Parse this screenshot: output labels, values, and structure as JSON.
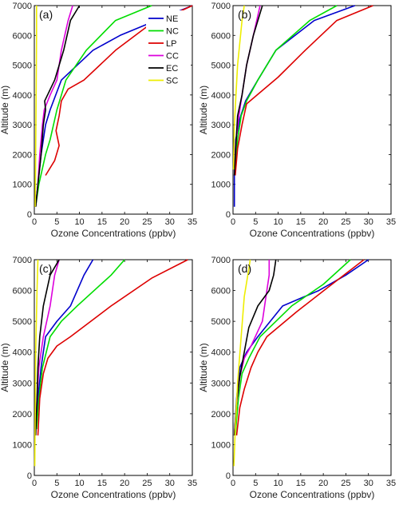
{
  "chart_data": [
    {
      "type": "line",
      "panel_label": "(a)",
      "xlabel": "Ozone Concentrations (ppbv)",
      "ylabel": "Altitude (m)",
      "xlim": [
        0,
        35
      ],
      "ylim": [
        0,
        7000
      ],
      "xticks": [
        0,
        5,
        10,
        15,
        20,
        25,
        30,
        35
      ],
      "yticks": [
        0,
        1000,
        2000,
        3000,
        4000,
        5000,
        6000,
        7000
      ],
      "legend": {
        "position": "top-right",
        "entries": [
          "NE",
          "NC",
          "LP",
          "CC",
          "EC",
          "SC"
        ]
      },
      "series": [
        {
          "name": "NE",
          "color": "#0000cc",
          "points": [
            [
              0.3,
              250
            ],
            [
              0.8,
              1000
            ],
            [
              1.5,
              2000
            ],
            [
              2.5,
              3000
            ],
            [
              3.5,
              3500
            ],
            [
              6.0,
              4500
            ],
            [
              13,
              5500
            ],
            [
              19,
              6000
            ],
            [
              27,
              6500
            ],
            [
              35,
              7000
            ]
          ]
        },
        {
          "name": "NC",
          "color": "#00dd00",
          "points": [
            [
              0.3,
              250
            ],
            [
              1.0,
              1000
            ],
            [
              2.5,
              2000
            ],
            [
              3.5,
              2500
            ],
            [
              5.0,
              3500
            ],
            [
              7.0,
              4500
            ],
            [
              11.5,
              5500
            ],
            [
              18,
              6500
            ],
            [
              26,
              7000
            ]
          ]
        },
        {
          "name": "LP",
          "color": "#dd0000",
          "points": [
            [
              2.5,
              1300
            ],
            [
              4.5,
              1800
            ],
            [
              5.5,
              2300
            ],
            [
              4.8,
              2800
            ],
            [
              5.5,
              3300
            ],
            [
              6.0,
              3800
            ],
            [
              7.5,
              4200
            ],
            [
              11,
              4500
            ],
            [
              18,
              5500
            ],
            [
              25,
              6300
            ],
            [
              35,
              7000
            ]
          ]
        },
        {
          "name": "CC",
          "color": "#dd00dd",
          "points": [
            [
              0.3,
              250
            ],
            [
              0.8,
              1000
            ],
            [
              1.2,
              2000
            ],
            [
              1.8,
              3000
            ],
            [
              2.2,
              3500
            ],
            [
              3.5,
              4000
            ],
            [
              5.0,
              4500
            ],
            [
              6.0,
              5500
            ],
            [
              7.5,
              6500
            ],
            [
              8.5,
              7000
            ]
          ]
        },
        {
          "name": "EC",
          "color": "#000000",
          "points": [
            [
              0.3,
              250
            ],
            [
              0.8,
              1000
            ],
            [
              1.5,
              2000
            ],
            [
              2.0,
              3000
            ],
            [
              2.5,
              3500
            ],
            [
              2.3,
              3800
            ],
            [
              4.5,
              4500
            ],
            [
              6.5,
              5500
            ],
            [
              8.0,
              6500
            ],
            [
              10,
              7000
            ]
          ]
        },
        {
          "name": "SC",
          "color": "#eeee00",
          "points": [
            [
              0.2,
              250
            ],
            [
              0.3,
              2000
            ],
            [
              0.4,
              4000
            ],
            [
              0.5,
              6000
            ],
            [
              0.5,
              7000
            ]
          ]
        }
      ]
    },
    {
      "type": "line",
      "panel_label": "(b)",
      "xlabel": "Ozone Concentrations (ppbv)",
      "ylabel": "Altitude (m)",
      "xlim": [
        0,
        35
      ],
      "ylim": [
        0,
        7000
      ],
      "xticks": [
        0,
        5,
        10,
        15,
        20,
        25,
        30,
        35
      ],
      "yticks": [
        0,
        1000,
        2000,
        3000,
        4000,
        5000,
        6000,
        7000
      ],
      "series": [
        {
          "name": "NE",
          "color": "#0000cc",
          "points": [
            [
              0.3,
              250
            ],
            [
              0.3,
              1300
            ],
            [
              0.6,
              2500
            ],
            [
              1.5,
              3200
            ],
            [
              2.8,
              3800
            ],
            [
              5.5,
              4500
            ],
            [
              9.5,
              5500
            ],
            [
              18,
              6500
            ],
            [
              27,
              7000
            ]
          ]
        },
        {
          "name": "NC",
          "color": "#00dd00",
          "points": [
            [
              0.5,
              1500
            ],
            [
              1.0,
              2500
            ],
            [
              1.8,
              3300
            ],
            [
              3.0,
              3800
            ],
            [
              5.5,
              4500
            ],
            [
              9.5,
              5500
            ],
            [
              17,
              6500
            ],
            [
              23,
              7000
            ]
          ]
        },
        {
          "name": "LP",
          "color": "#dd0000",
          "points": [
            [
              0.5,
              1300
            ],
            [
              1.0,
              2200
            ],
            [
              2.0,
              3000
            ],
            [
              3.0,
              3700
            ],
            [
              10,
              4600
            ],
            [
              16,
              5500
            ],
            [
              23,
              6500
            ],
            [
              31,
              7000
            ]
          ]
        },
        {
          "name": "CC",
          "color": "#dd00dd",
          "points": [
            [
              0.3,
              1300
            ],
            [
              0.6,
              2300
            ],
            [
              1.2,
              3200
            ],
            [
              2.0,
              4000
            ],
            [
              3.0,
              5000
            ],
            [
              4.5,
              6000
            ],
            [
              6.0,
              7000
            ]
          ]
        },
        {
          "name": "EC",
          "color": "#000000",
          "points": [
            [
              0.3,
              1300
            ],
            [
              0.6,
              2200
            ],
            [
              1.0,
              3300
            ],
            [
              2.0,
              4000
            ],
            [
              3.0,
              5000
            ],
            [
              4.5,
              6000
            ],
            [
              6.5,
              7000
            ]
          ]
        },
        {
          "name": "SC",
          "color": "#eeee00",
          "points": [
            [
              0.1,
              1500
            ],
            [
              0.3,
              3000
            ],
            [
              1.0,
              5000
            ],
            [
              2.0,
              6500
            ],
            [
              2.5,
              7000
            ]
          ]
        }
      ]
    },
    {
      "type": "line",
      "panel_label": "(c)",
      "xlabel": "Ozone Concentrations (ppbv)",
      "ylabel": "Altitude (m)",
      "xlim": [
        0,
        35
      ],
      "ylim": [
        0,
        7000
      ],
      "xticks": [
        0,
        5,
        10,
        15,
        20,
        25,
        30,
        35
      ],
      "yticks": [
        0,
        1000,
        2000,
        3000,
        4000,
        5000,
        6000,
        7000
      ],
      "series": [
        {
          "name": "NE",
          "color": "#0000cc",
          "points": [
            [
              0.3,
              1500
            ],
            [
              0.8,
              2500
            ],
            [
              1.5,
              3500
            ],
            [
              2.5,
              4500
            ],
            [
              5.0,
              5000
            ],
            [
              8.0,
              5500
            ],
            [
              11,
              6500
            ],
            [
              13,
              7000
            ]
          ]
        },
        {
          "name": "NC",
          "color": "#00dd00",
          "points": [
            [
              0.5,
              1500
            ],
            [
              1.0,
              2500
            ],
            [
              1.8,
              3500
            ],
            [
              3.5,
              4500
            ],
            [
              6.0,
              5000
            ],
            [
              9.5,
              5500
            ],
            [
              17,
              6500
            ],
            [
              20,
              7000
            ]
          ]
        },
        {
          "name": "LP",
          "color": "#dd0000",
          "points": [
            [
              0.8,
              1300
            ],
            [
              1.2,
              2500
            ],
            [
              2.0,
              3300
            ],
            [
              3.0,
              3800
            ],
            [
              5.0,
              4200
            ],
            [
              8.0,
              4500
            ],
            [
              17,
              5500
            ],
            [
              26,
              6400
            ],
            [
              34,
              7000
            ]
          ]
        },
        {
          "name": "CC",
          "color": "#dd00dd",
          "points": [
            [
              0.3,
              1300
            ],
            [
              0.6,
              2500
            ],
            [
              1.0,
              3500
            ],
            [
              2.0,
              4500
            ],
            [
              3.5,
              5500
            ],
            [
              4.5,
              6500
            ],
            [
              5.5,
              7000
            ]
          ]
        },
        {
          "name": "EC",
          "color": "#000000",
          "points": [
            [
              0.3,
              1300
            ],
            [
              0.6,
              2500
            ],
            [
              0.8,
              3500
            ],
            [
              1.2,
              4500
            ],
            [
              2.0,
              5500
            ],
            [
              3.5,
              6500
            ],
            [
              5.5,
              7000
            ]
          ]
        },
        {
          "name": "SC",
          "color": "#eeee00",
          "points": [
            [
              0.1,
              300
            ],
            [
              0.2,
              2000
            ],
            [
              0.3,
              4000
            ],
            [
              0.6,
              6000
            ],
            [
              0.8,
              7000
            ]
          ]
        }
      ]
    },
    {
      "type": "line",
      "panel_label": "(d)",
      "xlabel": "Ozone Concentrations (ppbv)",
      "ylabel": "Altitude (m)",
      "xlim": [
        0,
        35
      ],
      "ylim": [
        0,
        7000
      ],
      "xticks": [
        0,
        5,
        10,
        15,
        20,
        25,
        30,
        35
      ],
      "yticks": [
        0,
        1000,
        2000,
        3000,
        4000,
        5000,
        6000,
        7000
      ],
      "series": [
        {
          "name": "NE",
          "color": "#0000cc",
          "points": [
            [
              0.3,
              1300
            ],
            [
              0.8,
              2500
            ],
            [
              1.5,
              3500
            ],
            [
              3.0,
              4000
            ],
            [
              5.5,
              4500
            ],
            [
              11,
              5500
            ],
            [
              19,
              6000
            ],
            [
              25,
              6500
            ],
            [
              30,
              7000
            ]
          ]
        },
        {
          "name": "NC",
          "color": "#00dd00",
          "points": [
            [
              0.5,
              1300
            ],
            [
              1.2,
              2500
            ],
            [
              2.0,
              3300
            ],
            [
              3.5,
              3800
            ],
            [
              6.0,
              4500
            ],
            [
              13,
              5500
            ],
            [
              20,
              6200
            ],
            [
              26,
              7000
            ]
          ]
        },
        {
          "name": "LP",
          "color": "#dd0000",
          "points": [
            [
              0.8,
              1300
            ],
            [
              1.5,
              2200
            ],
            [
              2.5,
              2800
            ],
            [
              4.0,
              3500
            ],
            [
              5.5,
              4000
            ],
            [
              7.5,
              4500
            ],
            [
              14,
              5300
            ],
            [
              21,
              6100
            ],
            [
              29,
              7000
            ]
          ]
        },
        {
          "name": "CC",
          "color": "#dd00dd",
          "points": [
            [
              0.3,
              1300
            ],
            [
              0.8,
              2300
            ],
            [
              1.5,
              3200
            ],
            [
              2.5,
              3800
            ],
            [
              4.0,
              4200
            ],
            [
              6.5,
              5000
            ],
            [
              7.5,
              6000
            ],
            [
              8.0,
              6500
            ],
            [
              8.0,
              7000
            ]
          ]
        },
        {
          "name": "EC",
          "color": "#000000",
          "points": [
            [
              0.3,
              1300
            ],
            [
              0.8,
              2400
            ],
            [
              1.5,
              3200
            ],
            [
              2.5,
              4000
            ],
            [
              3.5,
              4800
            ],
            [
              5.5,
              5500
            ],
            [
              8.0,
              6000
            ],
            [
              9.0,
              6500
            ],
            [
              9.5,
              7000
            ]
          ]
        },
        {
          "name": "SC",
          "color": "#eeee00",
          "points": [
            [
              0.2,
              300
            ],
            [
              0.5,
              1500
            ],
            [
              1.0,
              3000
            ],
            [
              1.8,
              4500
            ],
            [
              2.5,
              5800
            ],
            [
              3.5,
              6700
            ],
            [
              3.8,
              7000
            ]
          ]
        }
      ]
    }
  ]
}
